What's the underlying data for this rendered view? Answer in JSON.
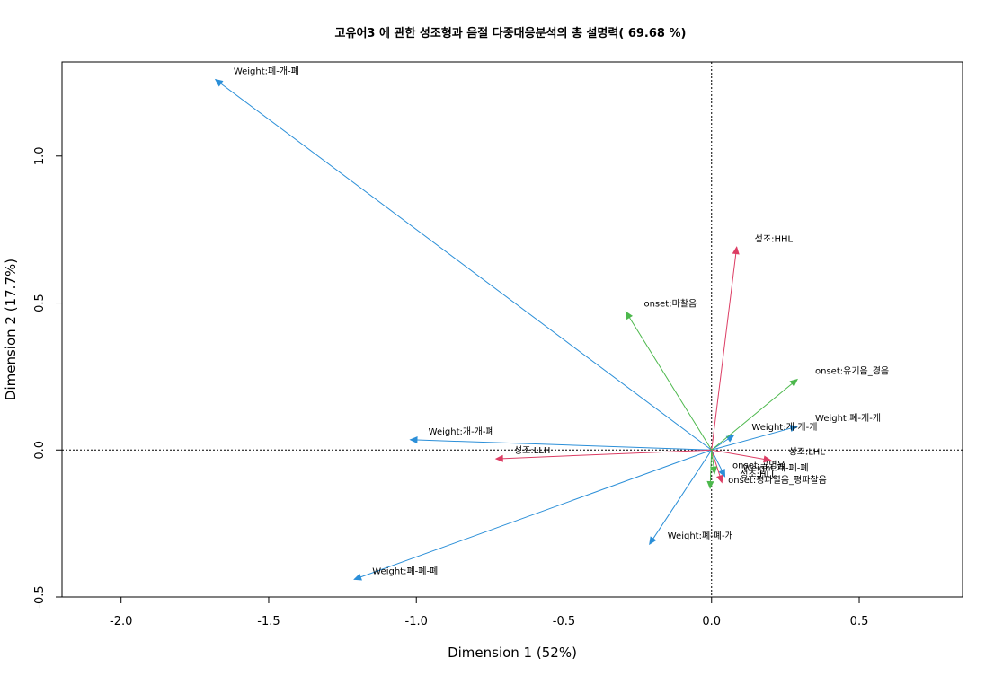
{
  "chart_data": {
    "type": "scatter",
    "title": "고유어3 에 관한 성조형과 음절 다중대응분석의 총 설명력( 69.68 %)",
    "xlabel": "Dimension 1 (52%)",
    "ylabel": "Dimension 2 (17.7%)",
    "xlim": [
      -2.2,
      0.85
    ],
    "ylim": [
      -0.5,
      1.32
    ],
    "x_ticks": [
      -2.0,
      -1.5,
      -1.0,
      -0.5,
      0.0,
      0.5
    ],
    "y_ticks": [
      -0.5,
      0.0,
      0.5,
      1.0
    ],
    "x_tick_labels": [
      "-2.0",
      "-1.5",
      "-1.0",
      "-0.5",
      "0.0",
      "0.5"
    ],
    "y_tick_labels": [
      "-0.5",
      "0.0",
      "0.5",
      "1.0"
    ],
    "reference_lines": {
      "x": 0,
      "y": 0,
      "style": "dotted"
    },
    "grid": false,
    "legend": "none",
    "colors": {
      "weight": "#2b8fd8",
      "tone": "#dc3d64",
      "onset": "#4cb84c"
    },
    "series": [
      {
        "group": "weight",
        "points": [
          {
            "label": "Weight:폐-개-폐",
            "x": -1.68,
            "y": 1.26
          },
          {
            "label": "Weight:개-개-폐",
            "x": -1.02,
            "y": 0.035
          },
          {
            "label": "Weight:폐-폐-폐",
            "x": -1.21,
            "y": -0.44
          },
          {
            "label": "Weight:폐-폐-개",
            "x": -0.21,
            "y": -0.32
          },
          {
            "label": "Weight:폐-개-개",
            "x": 0.29,
            "y": 0.08
          },
          {
            "label": "Weight:개-개-개",
            "x": 0.075,
            "y": 0.05
          },
          {
            "label": "Weight:개-폐-폐",
            "x": 0.045,
            "y": -0.09
          }
        ]
      },
      {
        "group": "tone",
        "points": [
          {
            "label": "성조:HHL",
            "x": 0.085,
            "y": 0.69
          },
          {
            "label": "성조:LLH",
            "x": -0.73,
            "y": -0.03
          },
          {
            "label": "성조:LHL",
            "x": 0.2,
            "y": -0.035
          },
          {
            "label": "성조:HLL",
            "x": 0.035,
            "y": -0.11
          }
        ]
      },
      {
        "group": "onset",
        "points": [
          {
            "label": "onset:마찰음",
            "x": -0.29,
            "y": 0.47
          },
          {
            "label": "onset:유기음_경음",
            "x": 0.29,
            "y": 0.24
          },
          {
            "label": "onset:평파열음_평파찰음",
            "x": -0.005,
            "y": -0.13
          },
          {
            "label": "onset:공명음",
            "x": 0.01,
            "y": -0.08
          }
        ]
      }
    ]
  }
}
